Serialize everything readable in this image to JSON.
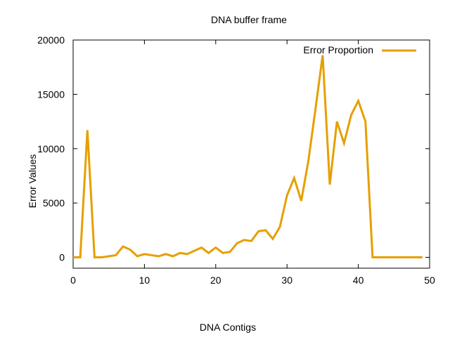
{
  "chart_data": {
    "type": "line",
    "title": "DNA buffer frame",
    "xlabel": "DNA Contigs",
    "ylabel": "Error Values",
    "xlim": [
      0,
      50
    ],
    "ylim": [
      -1000,
      20000
    ],
    "xticks": [
      0,
      10,
      20,
      30,
      40,
      50
    ],
    "yticks": [
      0,
      5000,
      10000,
      15000,
      20000
    ],
    "grid": false,
    "legend_position": "top-right",
    "series": [
      {
        "name": "Error Proportion",
        "color": "#e69f00",
        "x": [
          0,
          1,
          2,
          3,
          4,
          5,
          6,
          7,
          8,
          9,
          10,
          11,
          12,
          13,
          14,
          15,
          16,
          17,
          18,
          19,
          20,
          21,
          22,
          23,
          24,
          25,
          26,
          27,
          28,
          29,
          30,
          31,
          32,
          33,
          34,
          35,
          36,
          37,
          38,
          39,
          40,
          41,
          42,
          43,
          44,
          45,
          46,
          47,
          48,
          49
        ],
        "y": [
          0,
          0,
          11700,
          0,
          0,
          100,
          200,
          1000,
          700,
          100,
          300,
          200,
          100,
          300,
          100,
          400,
          300,
          600,
          900,
          400,
          900,
          400,
          500,
          1300,
          1600,
          1500,
          2400,
          2500,
          1700,
          2800,
          5700,
          7300,
          5200,
          8900,
          13700,
          18600,
          6700,
          12500,
          10500,
          13100,
          14400,
          12500,
          0,
          0,
          0,
          0,
          0,
          0,
          0,
          0
        ]
      }
    ]
  }
}
